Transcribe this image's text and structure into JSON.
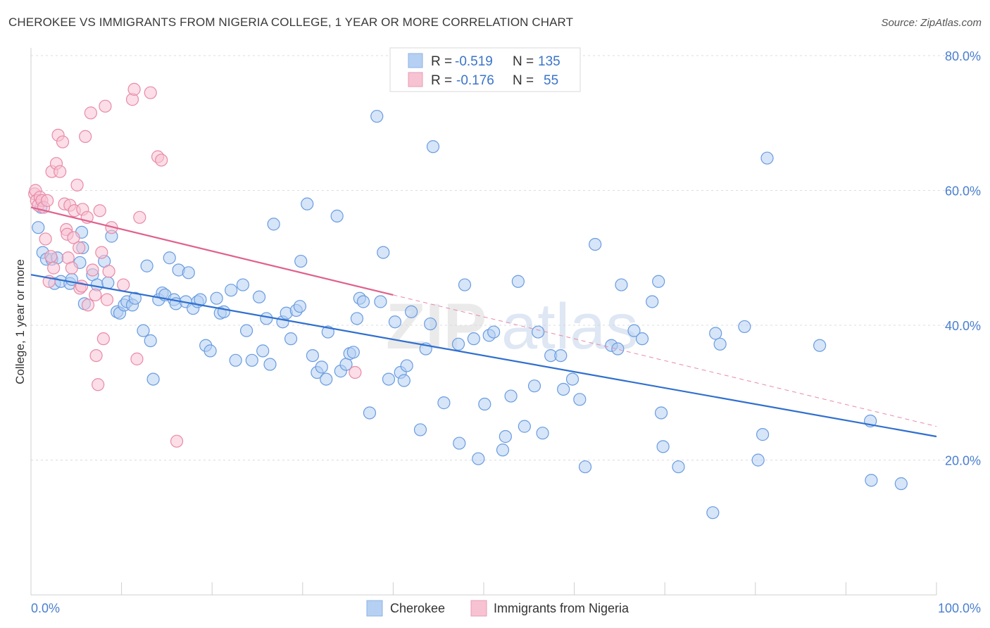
{
  "header": {
    "title": "CHEROKEE VS IMMIGRANTS FROM NIGERIA COLLEGE, 1 YEAR OR MORE CORRELATION CHART",
    "source": "Source: ZipAtlas.com"
  },
  "watermark": {
    "zip": "ZIP",
    "atlas": "atlas"
  },
  "legend": {
    "series": [
      {
        "r_label": "R =",
        "r_value": "-0.519",
        "n_label": "N =",
        "n_value": "135",
        "color": "#a8c8f0"
      },
      {
        "r_label": "R =",
        "r_value": "-0.176",
        "n_label": "N =",
        "n_value": "55",
        "color": "#f5b8cb"
      }
    ]
  },
  "chart_data": {
    "type": "scatter",
    "title": "CHEROKEE VS IMMIGRANTS FROM NIGERIA COLLEGE, 1 YEAR OR MORE CORRELATION CHART",
    "xlabel": "",
    "ylabel": "College, 1 year or more",
    "xlim": [
      0,
      100
    ],
    "ylim": [
      0,
      80
    ],
    "x_tick_labels": [
      "0.0%",
      "100.0%"
    ],
    "y_ticks": [
      20,
      40,
      60,
      80
    ],
    "y_tick_labels": [
      "20.0%",
      "40.0%",
      "60.0%",
      "80.0%"
    ],
    "series": [
      {
        "name": "Cherokee",
        "color": "#6a9ce0",
        "fill": "#b5d0f2",
        "trend": {
          "x": [
            0,
            100
          ],
          "y": [
            47.5,
            23.5
          ]
        },
        "points": [
          [
            0.8,
            54.5
          ],
          [
            1.1,
            57.5
          ],
          [
            1.3,
            50.8
          ],
          [
            1.7,
            49.8
          ],
          [
            2.3,
            49.8
          ],
          [
            2.6,
            46.2
          ],
          [
            2.9,
            50.0
          ],
          [
            3.3,
            46.5
          ],
          [
            4.3,
            46.2
          ],
          [
            4.5,
            46.8
          ],
          [
            5.7,
            51.5
          ],
          [
            5.4,
            49.3
          ],
          [
            5.9,
            43.2
          ],
          [
            5.6,
            53.8
          ],
          [
            6.8,
            47.5
          ],
          [
            7.3,
            46.0
          ],
          [
            8.1,
            49.5
          ],
          [
            8.5,
            46.3
          ],
          [
            8.9,
            53.2
          ],
          [
            9.5,
            42.0
          ],
          [
            9.8,
            41.8
          ],
          [
            10.3,
            43.0
          ],
          [
            10.6,
            43.5
          ],
          [
            11.2,
            43.0
          ],
          [
            11.5,
            44.0
          ],
          [
            12.4,
            39.2
          ],
          [
            12.8,
            48.8
          ],
          [
            13.2,
            37.7
          ],
          [
            13.5,
            32.0
          ],
          [
            14.1,
            43.8
          ],
          [
            14.5,
            44.8
          ],
          [
            14.8,
            44.5
          ],
          [
            15.3,
            50.0
          ],
          [
            15.8,
            43.8
          ],
          [
            16.0,
            43.2
          ],
          [
            16.3,
            48.2
          ],
          [
            17.1,
            43.5
          ],
          [
            17.4,
            47.8
          ],
          [
            17.9,
            42.5
          ],
          [
            18.4,
            43.5
          ],
          [
            18.7,
            43.8
          ],
          [
            19.3,
            37.0
          ],
          [
            19.8,
            36.2
          ],
          [
            20.5,
            44.0
          ],
          [
            20.9,
            41.8
          ],
          [
            21.3,
            42.0
          ],
          [
            22.1,
            45.2
          ],
          [
            22.6,
            34.8
          ],
          [
            23.4,
            46.0
          ],
          [
            23.8,
            39.2
          ],
          [
            24.4,
            34.8
          ],
          [
            25.2,
            44.2
          ],
          [
            25.6,
            36.2
          ],
          [
            26.0,
            41.0
          ],
          [
            26.4,
            34.2
          ],
          [
            26.8,
            55.0
          ],
          [
            27.8,
            40.5
          ],
          [
            28.2,
            41.8
          ],
          [
            28.7,
            38.0
          ],
          [
            29.3,
            42.2
          ],
          [
            29.7,
            42.8
          ],
          [
            29.8,
            49.5
          ],
          [
            30.5,
            58.0
          ],
          [
            31.1,
            35.5
          ],
          [
            31.6,
            33.0
          ],
          [
            32.1,
            33.8
          ],
          [
            32.6,
            32.0
          ],
          [
            32.8,
            39.0
          ],
          [
            33.8,
            56.2
          ],
          [
            34.2,
            33.2
          ],
          [
            34.8,
            34.2
          ],
          [
            35.2,
            35.8
          ],
          [
            35.6,
            36.0
          ],
          [
            36.0,
            41.0
          ],
          [
            36.3,
            44.0
          ],
          [
            36.7,
            43.5
          ],
          [
            37.4,
            27.0
          ],
          [
            38.2,
            71.0
          ],
          [
            38.6,
            43.5
          ],
          [
            38.9,
            50.8
          ],
          [
            39.5,
            32.0
          ],
          [
            40.2,
            40.5
          ],
          [
            40.8,
            33.0
          ],
          [
            41.2,
            31.8
          ],
          [
            41.5,
            34.0
          ],
          [
            42.0,
            42.0
          ],
          [
            43.0,
            24.5
          ],
          [
            43.6,
            36.5
          ],
          [
            44.1,
            40.2
          ],
          [
            44.4,
            66.5
          ],
          [
            45.6,
            28.5
          ],
          [
            47.2,
            37.2
          ],
          [
            47.3,
            22.5
          ],
          [
            47.9,
            46.0
          ],
          [
            48.9,
            38.0
          ],
          [
            49.4,
            20.2
          ],
          [
            50.1,
            28.3
          ],
          [
            50.6,
            38.5
          ],
          [
            51.1,
            39.0
          ],
          [
            52.1,
            21.5
          ],
          [
            52.4,
            23.5
          ],
          [
            53.0,
            29.5
          ],
          [
            53.8,
            46.5
          ],
          [
            54.5,
            25.0
          ],
          [
            55.6,
            31.0
          ],
          [
            56.0,
            39.0
          ],
          [
            56.5,
            24.0
          ],
          [
            57.4,
            35.5
          ],
          [
            58.5,
            35.5
          ],
          [
            58.8,
            30.5
          ],
          [
            59.8,
            32.0
          ],
          [
            60.6,
            29.0
          ],
          [
            61.2,
            19.0
          ],
          [
            62.3,
            52.0
          ],
          [
            64.1,
            37.0
          ],
          [
            64.8,
            36.5
          ],
          [
            65.2,
            46.0
          ],
          [
            66.6,
            39.2
          ],
          [
            67.5,
            38.0
          ],
          [
            68.6,
            43.5
          ],
          [
            69.3,
            46.5
          ],
          [
            69.6,
            27.0
          ],
          [
            69.8,
            22.0
          ],
          [
            71.5,
            19.0
          ],
          [
            75.3,
            12.2
          ],
          [
            75.6,
            38.8
          ],
          [
            76.1,
            37.2
          ],
          [
            78.8,
            39.8
          ],
          [
            80.3,
            20.0
          ],
          [
            80.8,
            23.8
          ],
          [
            81.3,
            64.8
          ],
          [
            87.1,
            37.0
          ],
          [
            92.7,
            25.8
          ],
          [
            92.8,
            17.0
          ],
          [
            96.1,
            16.5
          ]
        ]
      },
      {
        "name": "Immigrants from Nigeria",
        "color": "#e98aa7",
        "fill": "#f7c3d3",
        "trend": {
          "x": [
            0,
            40
          ],
          "y": [
            57.5,
            44.5
          ]
        },
        "trend_extended": {
          "x": [
            40,
            100
          ],
          "y": [
            44.5,
            25.0
          ]
        },
        "points": [
          [
            0.4,
            59.5
          ],
          [
            0.5,
            60.0
          ],
          [
            0.6,
            58.5
          ],
          [
            0.8,
            57.8
          ],
          [
            1.0,
            59.0
          ],
          [
            1.2,
            58.5
          ],
          [
            1.4,
            57.5
          ],
          [
            1.6,
            52.8
          ],
          [
            1.8,
            58.5
          ],
          [
            2.0,
            46.5
          ],
          [
            2.2,
            50.2
          ],
          [
            2.3,
            62.8
          ],
          [
            2.5,
            48.5
          ],
          [
            2.8,
            64.0
          ],
          [
            3.0,
            68.2
          ],
          [
            3.2,
            62.8
          ],
          [
            3.5,
            67.2
          ],
          [
            3.7,
            58.0
          ],
          [
            3.9,
            54.2
          ],
          [
            4.0,
            53.5
          ],
          [
            4.1,
            50.0
          ],
          [
            4.3,
            57.8
          ],
          [
            4.5,
            48.5
          ],
          [
            4.7,
            53.0
          ],
          [
            4.8,
            57.0
          ],
          [
            5.1,
            60.8
          ],
          [
            5.3,
            51.5
          ],
          [
            5.4,
            45.5
          ],
          [
            5.6,
            45.8
          ],
          [
            5.7,
            57.2
          ],
          [
            6.0,
            68.0
          ],
          [
            6.2,
            56.0
          ],
          [
            6.3,
            43.0
          ],
          [
            6.6,
            71.5
          ],
          [
            6.8,
            48.2
          ],
          [
            7.1,
            44.5
          ],
          [
            7.2,
            35.5
          ],
          [
            7.4,
            31.2
          ],
          [
            7.6,
            57.0
          ],
          [
            7.8,
            50.8
          ],
          [
            8.0,
            38.0
          ],
          [
            8.2,
            72.5
          ],
          [
            8.4,
            43.8
          ],
          [
            8.6,
            48.0
          ],
          [
            8.9,
            54.5
          ],
          [
            10.2,
            46.0
          ],
          [
            11.2,
            73.5
          ],
          [
            11.4,
            75.0
          ],
          [
            11.7,
            35.0
          ],
          [
            12.0,
            56.0
          ],
          [
            13.2,
            74.5
          ],
          [
            14.0,
            65.0
          ],
          [
            14.4,
            64.5
          ],
          [
            16.1,
            22.8
          ],
          [
            35.8,
            33.0
          ]
        ]
      }
    ]
  },
  "bottom_legend": {
    "items": [
      {
        "label": "Cherokee",
        "color": "#b5d0f2"
      },
      {
        "label": "Immigrants from Nigeria",
        "color": "#f7c3d3"
      }
    ]
  }
}
